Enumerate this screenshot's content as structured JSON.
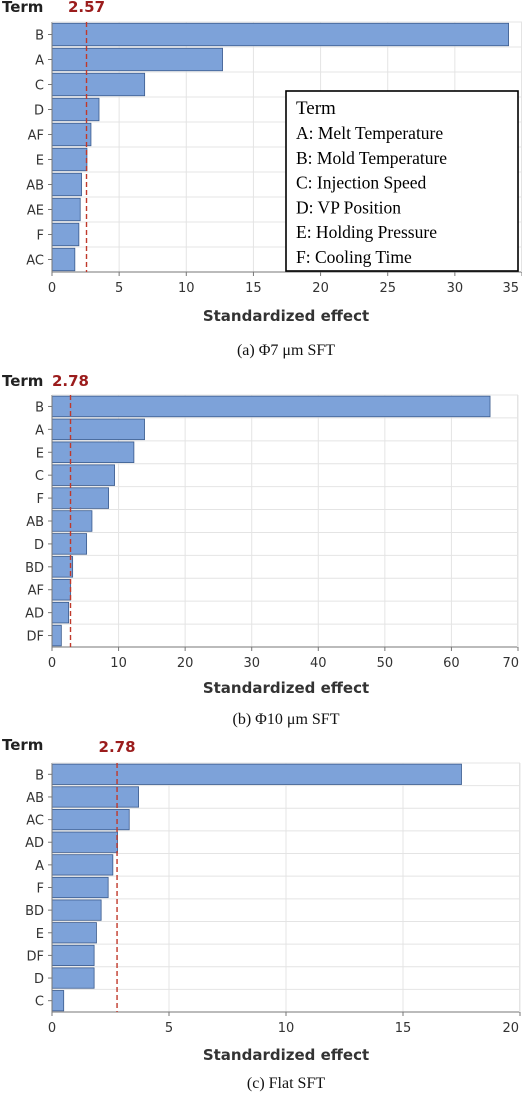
{
  "chart_data": [
    {
      "type": "bar",
      "orientation": "horizontal",
      "title": "",
      "ylabel": "Term",
      "xlabel": "Standardized effect",
      "caption": "(a) Φ7 μm SFT",
      "reference_value": 2.57,
      "reference_label": "2.57",
      "categories": [
        "B",
        "A",
        "C",
        "D",
        "AF",
        "E",
        "AB",
        "AE",
        "F",
        "AC"
      ],
      "values": [
        34.0,
        12.7,
        6.9,
        3.5,
        2.9,
        2.6,
        2.2,
        2.1,
        2.0,
        1.7
      ],
      "xlim": [
        0,
        35
      ],
      "xticks": [
        "0",
        "5",
        "10",
        "15",
        "20",
        "25",
        "30",
        "35"
      ],
      "grid": true,
      "legend": {
        "position": "bottom-right",
        "title": "Term",
        "items": [
          "A: Melt Temperature",
          "B: Mold Temperature",
          "C: Injection Speed",
          "D: VP Position",
          "E: Holding Pressure",
          "F: Cooling Time"
        ]
      }
    },
    {
      "type": "bar",
      "orientation": "horizontal",
      "title": "",
      "ylabel": "Term",
      "xlabel": "Standardized effect",
      "caption": "(b) Φ10 μm SFT",
      "reference_value": 2.78,
      "reference_label": "2.78",
      "categories": [
        "B",
        "A",
        "E",
        "C",
        "F",
        "AB",
        "D",
        "BD",
        "AF",
        "AD",
        "DF"
      ],
      "values": [
        65.8,
        13.9,
        12.3,
        9.4,
        8.5,
        6.0,
        5.2,
        3.1,
        2.8,
        2.5,
        1.4
      ],
      "xlim": [
        0,
        70
      ],
      "xticks": [
        "0",
        "10",
        "20",
        "30",
        "40",
        "50",
        "60",
        "70"
      ],
      "grid": true
    },
    {
      "type": "bar",
      "orientation": "horizontal",
      "title": "",
      "ylabel": "Term",
      "xlabel": "Standardized effect",
      "caption": "(c) Flat SFT",
      "reference_value": 2.78,
      "reference_label": "2.78",
      "categories": [
        "B",
        "AB",
        "AC",
        "AD",
        "A",
        "F",
        "BD",
        "E",
        "DF",
        "D",
        "C"
      ],
      "values": [
        17.5,
        3.7,
        3.3,
        2.8,
        2.6,
        2.4,
        2.1,
        1.9,
        1.8,
        1.8,
        0.5
      ],
      "xlim": [
        0,
        20
      ],
      "xticks": [
        "0",
        "5",
        "10",
        "15",
        "20"
      ],
      "grid": true
    }
  ],
  "colors": {
    "bar_fill": "#7da2d9",
    "bar_stroke": "#3a5a8c",
    "reference_line": "#c0392b",
    "reference_label": "#9b1c1c",
    "grid": "#e4e4e4",
    "axis": "#777777",
    "text": "#333333"
  }
}
